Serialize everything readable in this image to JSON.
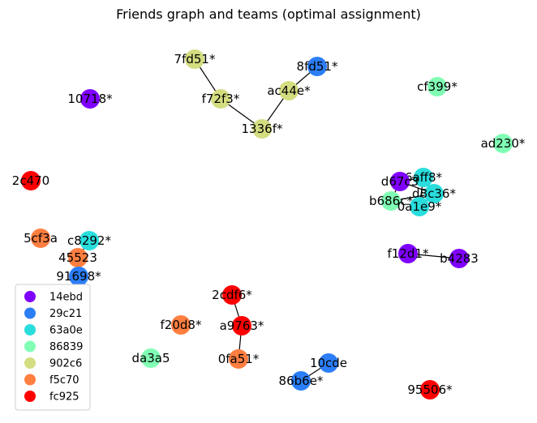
{
  "title": "Friends graph and teams (optimal assignment)",
  "team_colors": {
    "14ebd": "#7f00ff",
    "29c21": "#2c7ef7",
    "63a0e": "#2adddd",
    "86839": "#80ffb4",
    "902c6": "#d4dd80",
    "f5c70": "#ff7f41",
    "fc925": "#ff0000"
  },
  "legend": [
    {
      "label": "14ebd",
      "color": "#7f00ff"
    },
    {
      "label": "29c21",
      "color": "#2c7ef7"
    },
    {
      "label": "63a0e",
      "color": "#2adddd"
    },
    {
      "label": "86839",
      "color": "#80ffb4"
    },
    {
      "label": "902c6",
      "color": "#d4dd80"
    },
    {
      "label": "f5c70",
      "color": "#ff7f41"
    },
    {
      "label": "fc925",
      "color": "#ff0000"
    }
  ],
  "nodes": [
    {
      "id": "7fd51",
      "label": "7fd51*",
      "team": "902c6"
    },
    {
      "id": "8fd51",
      "label": "8fd51*",
      "team": "29c21"
    },
    {
      "id": "f72f3",
      "label": "f72f3*",
      "team": "902c6"
    },
    {
      "id": "ac44e",
      "label": "ac44e*",
      "team": "902c6"
    },
    {
      "id": "1336f",
      "label": "1336f*",
      "team": "902c6"
    },
    {
      "id": "cf399",
      "label": "cf399*",
      "team": "86839"
    },
    {
      "id": "10718",
      "label": "10718*",
      "team": "14ebd"
    },
    {
      "id": "ad230",
      "label": "ad230*",
      "team": "86839"
    },
    {
      "id": "2c470",
      "label": "2c470",
      "team": "fc925"
    },
    {
      "id": "6aff8",
      "label": "6aff8*",
      "team": "63a0e"
    },
    {
      "id": "d67c3",
      "label": "d67c3",
      "team": "14ebd"
    },
    {
      "id": "d8c36",
      "label": "d8c36*",
      "team": "63a0e"
    },
    {
      "id": "b686c",
      "label": "b686c*",
      "team": "86839"
    },
    {
      "id": "0a1e9",
      "label": "0a1e9*",
      "team": "63a0e"
    },
    {
      "id": "5cf3a",
      "label": "5cf3a",
      "team": "f5c70"
    },
    {
      "id": "c8292",
      "label": "c8292*",
      "team": "63a0e"
    },
    {
      "id": "45523",
      "label": "45523",
      "team": "f5c70"
    },
    {
      "id": "91698",
      "label": "91698*",
      "team": "29c21"
    },
    {
      "id": "f12d1",
      "label": "f12d1*",
      "team": "14ebd"
    },
    {
      "id": "b4283",
      "label": "b4283",
      "team": "14ebd"
    },
    {
      "id": "2cdf6",
      "label": "2cdf6*",
      "team": "fc925"
    },
    {
      "id": "f20d8",
      "label": "f20d8*",
      "team": "f5c70"
    },
    {
      "id": "a9763",
      "label": "a9763*",
      "team": "fc925"
    },
    {
      "id": "da3a5",
      "label": "da3a5",
      "team": "86839"
    },
    {
      "id": "0fa51",
      "label": "0fa51*",
      "team": "f5c70"
    },
    {
      "id": "10cde",
      "label": "10cde",
      "team": "29c21"
    },
    {
      "id": "86b6e",
      "label": "86b6e*",
      "team": "29c21"
    },
    {
      "id": "95506",
      "label": "95506*",
      "team": "fc925"
    }
  ],
  "edges": [
    [
      "7fd51",
      "f72f3"
    ],
    [
      "f72f3",
      "1336f"
    ],
    [
      "1336f",
      "ac44e"
    ],
    [
      "ac44e",
      "8fd51"
    ],
    [
      "d67c3",
      "6aff8"
    ],
    [
      "d67c3",
      "d8c36"
    ],
    [
      "d67c3",
      "b686c"
    ],
    [
      "6aff8",
      "0a1e9"
    ],
    [
      "6aff8",
      "d8c36"
    ],
    [
      "b686c",
      "d8c36"
    ],
    [
      "0a1e9",
      "d8c36"
    ],
    [
      "c8292",
      "45523"
    ],
    [
      "45523",
      "91698"
    ],
    [
      "f12d1",
      "b4283"
    ],
    [
      "2cdf6",
      "a9763"
    ],
    [
      "a9763",
      "0fa51"
    ],
    [
      "10cde",
      "86b6e"
    ]
  ]
}
